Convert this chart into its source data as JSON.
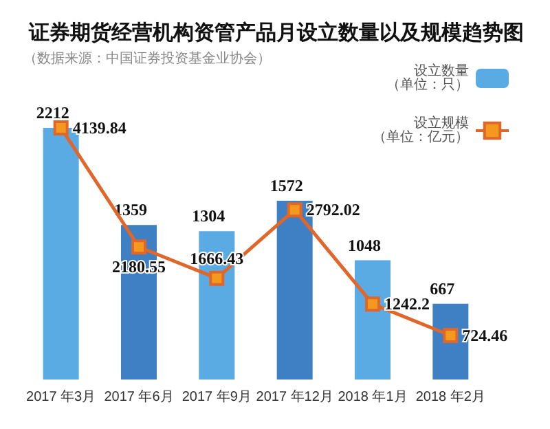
{
  "chart_data": {
    "type": "bar",
    "title": "证券期货经营机构资管产品月设立数量以及规模趋势图",
    "subtitle": "（数据来源：中国证券投资基金业协会）",
    "categories": [
      "2017 年3月",
      "2017 年6月",
      "2017 年9月",
      "2017 年12月",
      "2018 年1月",
      "2018 年2月"
    ],
    "series": [
      {
        "name": "设立数量（单位：只）",
        "color": "#5aabe3",
        "colors": [
          "#5aabe3",
          "#3f7fc3",
          "#5aabe3",
          "#3f7fc3",
          "#5aabe3",
          "#3f7fc3"
        ],
        "values": [
          2212,
          1359,
          1304,
          1572,
          1048,
          667
        ]
      },
      {
        "name": "设立规模（单位：亿元）",
        "type": "line",
        "axis": "y2",
        "color": "#e0662a",
        "values": [
          4139.84,
          2180.55,
          1666.43,
          2792.02,
          1242.2,
          724.46
        ]
      }
    ],
    "data_labels": true,
    "legend": "top right",
    "marker": "square",
    "grid": false
  }
}
